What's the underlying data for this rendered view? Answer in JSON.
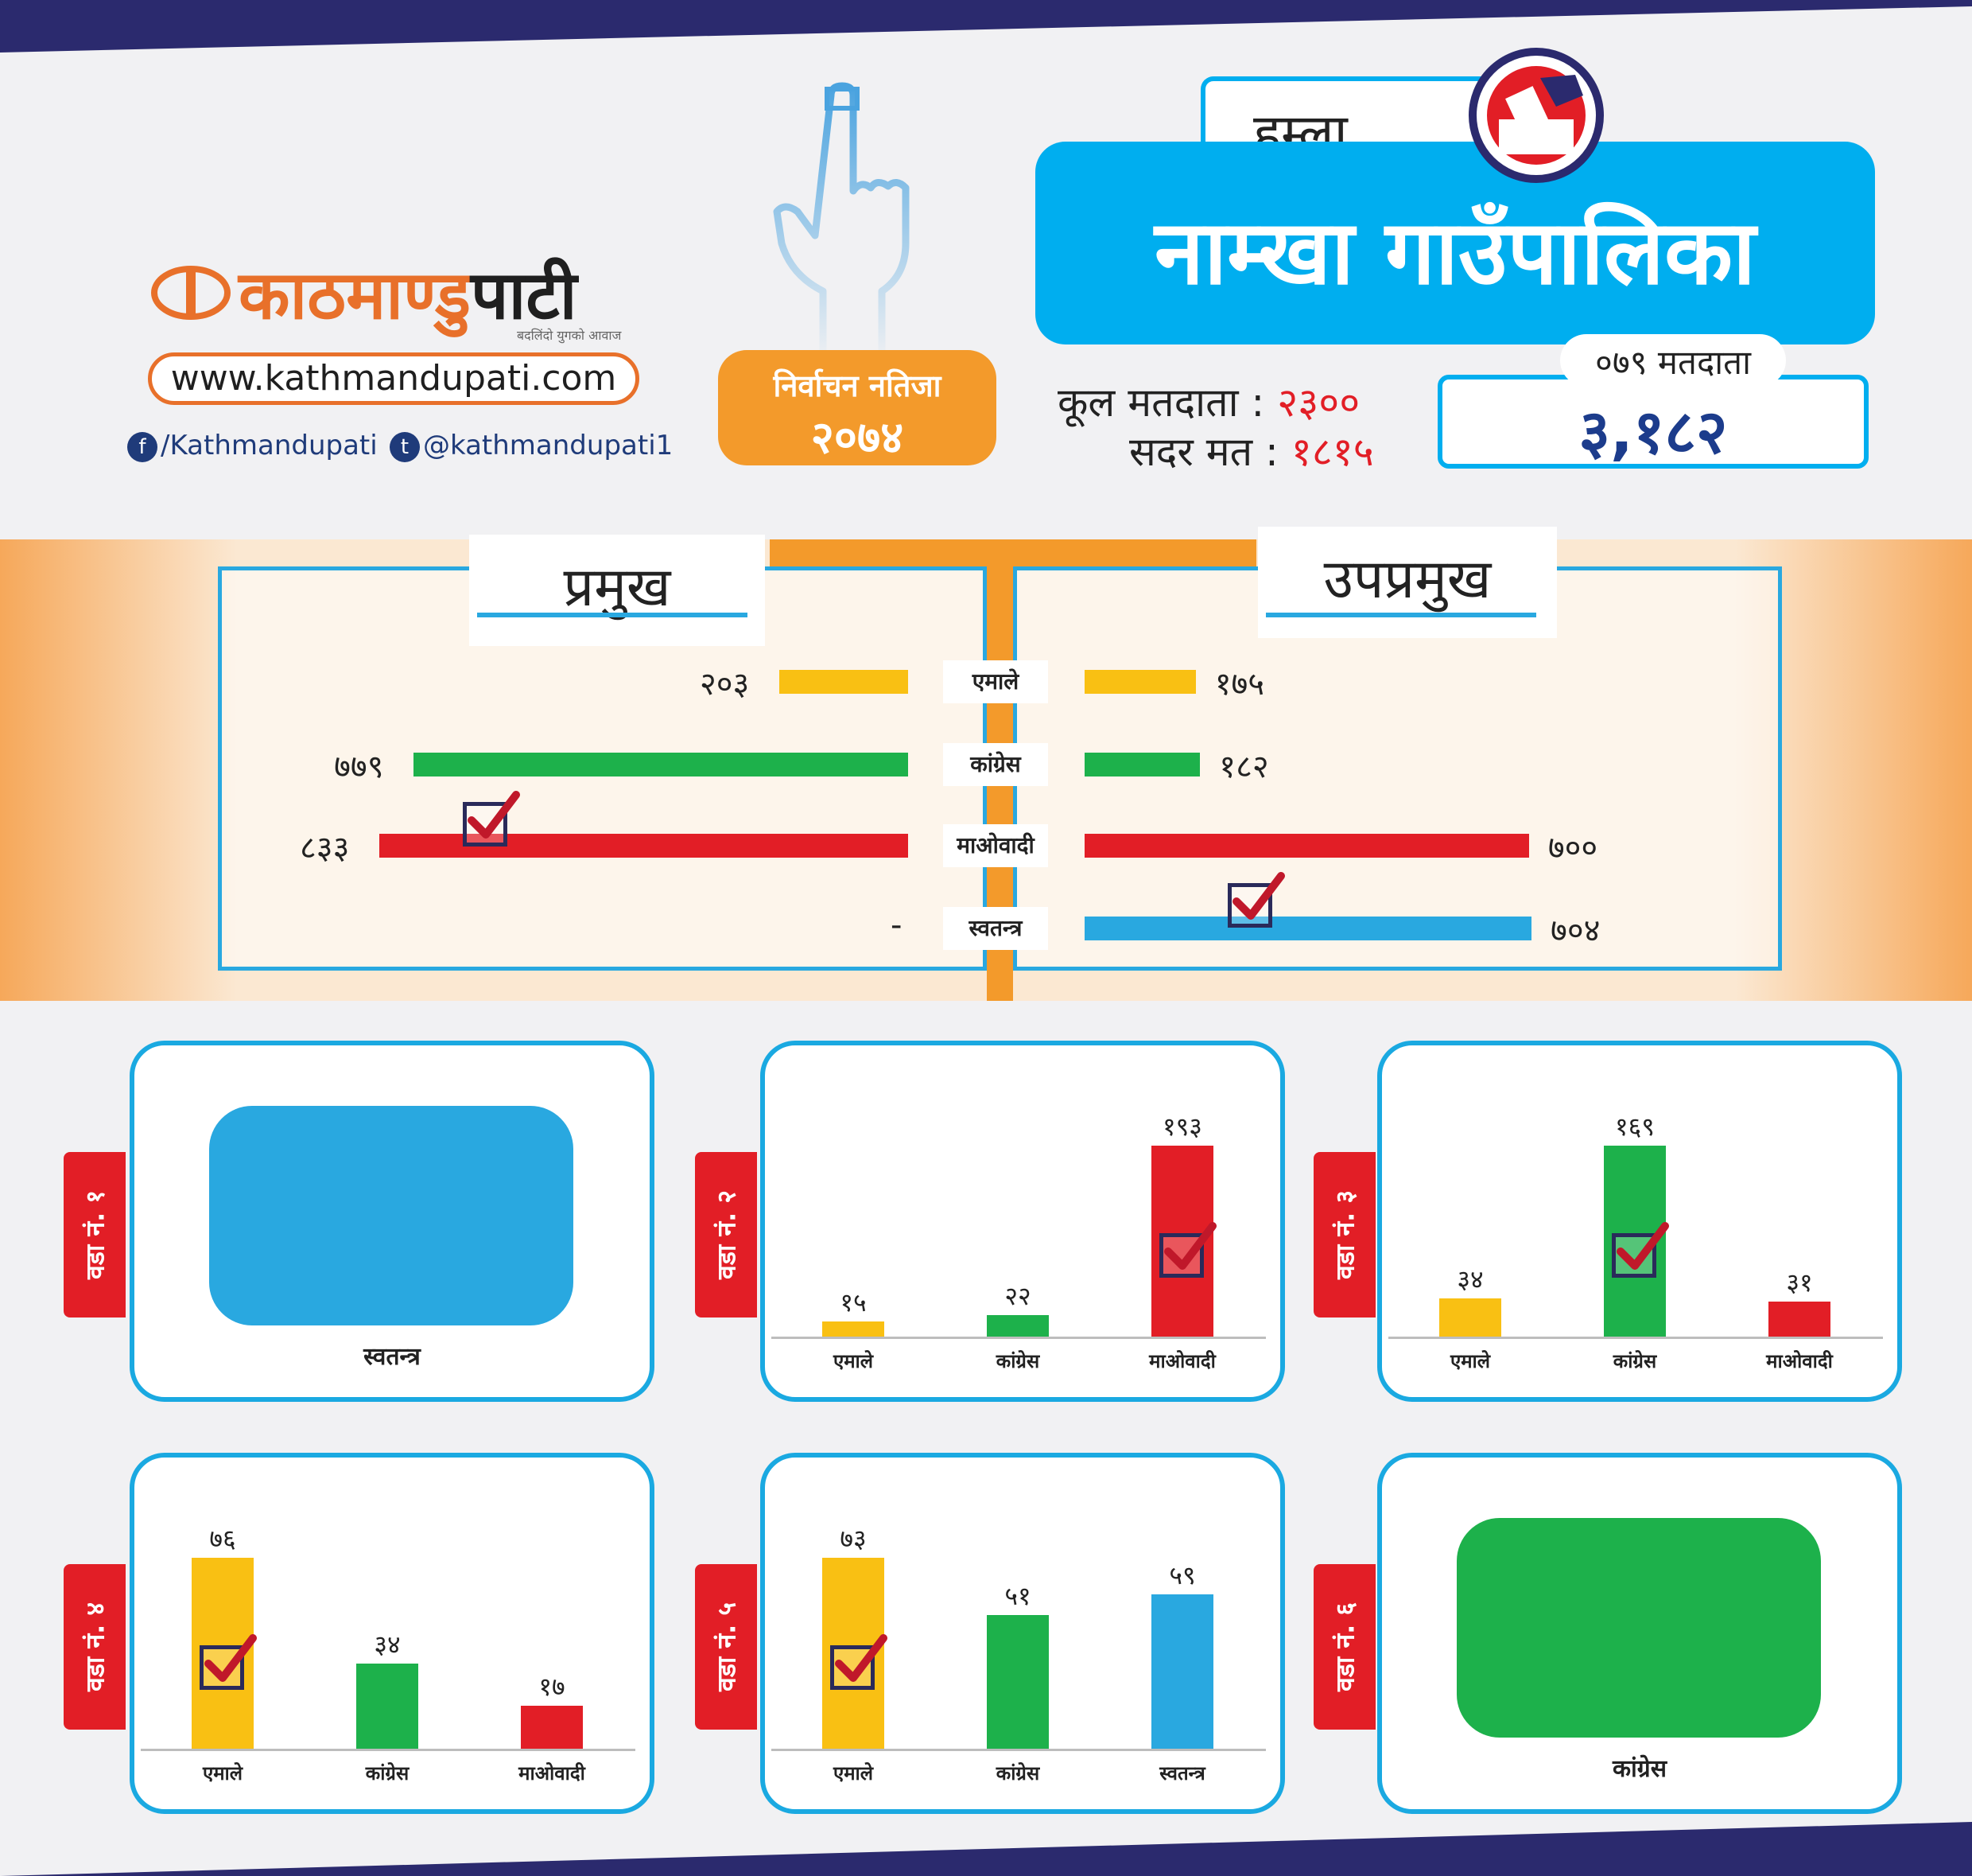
{
  "brand": {
    "logo_text_orange": "काठमाण्डु",
    "logo_text_dark": "पाटी",
    "tagline": "बदलिंदो युगको आवाज",
    "website": "www.kathmandupati.com",
    "facebook": "/Kathmandupati",
    "twitter": "@kathmandupati1"
  },
  "badge": {
    "line1": "निर्वाचन नतिजा",
    "line2": "२०७४"
  },
  "header": {
    "district": "हुम्ला",
    "municipality": "नाम्खा  गाउँपालिका",
    "total_voters_label": "कूल मतदाता :",
    "total_voters_value": "२३००",
    "valid_votes_label": "सदर मत :",
    "valid_votes_value": "१८१५",
    "voters79_label": "०७९ मतदाता",
    "voters79_value": "३,१८२"
  },
  "colors": {
    "navy": "#2b2a6e",
    "cyan": "#00aeef",
    "orange": "#f39a2b",
    "ekmale": "#f9c013",
    "congress": "#1db14b",
    "maoist": "#e21e26",
    "independent": "#29a8e0"
  },
  "chart_data": [
    {
      "type": "bar",
      "orientation": "horizontal",
      "title": "प्रमुख",
      "categories": [
        "एमाले",
        "कांग्रेस",
        "माओवादी",
        "स्वतन्त्र"
      ],
      "values": [
        203,
        779,
        833,
        null
      ],
      "value_labels": [
        "२०३",
        "७७९",
        "८३३",
        "-"
      ],
      "winner": "माओवादी"
    },
    {
      "type": "bar",
      "orientation": "horizontal",
      "title": "उपप्रमुख",
      "categories": [
        "एमाले",
        "कांग्रेस",
        "माओवादी",
        "स्वतन्त्र"
      ],
      "values": [
        175,
        182,
        700,
        704
      ],
      "value_labels": [
        "१७५",
        "१८२",
        "७००",
        "७०४"
      ],
      "winner": "स्वतन्त्र"
    },
    {
      "type": "bar",
      "title": "वडा नं. १",
      "categories": [
        "स्वतन्त्र"
      ],
      "values": [
        null
      ],
      "winner": "स्वतन्त्र"
    },
    {
      "type": "bar",
      "title": "वडा नं. २",
      "categories": [
        "एमाले",
        "कांग्रेस",
        "माओवादी"
      ],
      "values": [
        15,
        22,
        193
      ],
      "value_labels": [
        "१५",
        "२२",
        "१९३"
      ],
      "winner": "माओवादी"
    },
    {
      "type": "bar",
      "title": "वडा नं. ३",
      "categories": [
        "एमाले",
        "कांग्रेस",
        "माओवादी"
      ],
      "values": [
        34,
        169,
        31
      ],
      "value_labels": [
        "३४",
        "१६९",
        "३१"
      ],
      "winner": "कांग्रेस"
    },
    {
      "type": "bar",
      "title": "वडा नं. ४",
      "categories": [
        "एमाले",
        "कांग्रेस",
        "माओवादी"
      ],
      "values": [
        76,
        34,
        17
      ],
      "value_labels": [
        "७६",
        "३४",
        "१७"
      ],
      "winner": "एमाले"
    },
    {
      "type": "bar",
      "title": "वडा नं. ५",
      "categories": [
        "एमाले",
        "कांग्रेस",
        "स्वतन्त्र"
      ],
      "values": [
        73,
        51,
        59
      ],
      "value_labels": [
        "७३",
        "५१",
        "५९"
      ],
      "winner": "एमाले"
    },
    {
      "type": "bar",
      "title": "वडा नं. ६",
      "categories": [
        "कांग्रेस"
      ],
      "values": [
        null
      ],
      "winner": "कांग्रेस"
    }
  ]
}
